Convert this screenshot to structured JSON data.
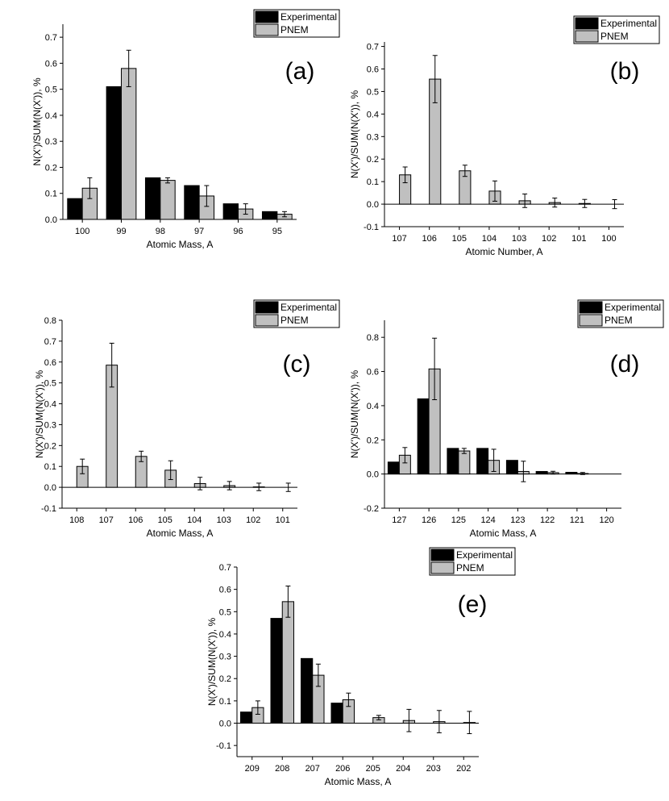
{
  "colors": {
    "experimental": "#000000",
    "pnem": "#c0c0c0",
    "axis": "#000000"
  },
  "chart_data": [
    {
      "id": "a",
      "type": "bar",
      "panel_label": "(a)",
      "xlabel": "Atomic Mass, A",
      "ylabel": "N(X')/SUM(N(X')), %",
      "categories": [
        "100",
        "99",
        "98",
        "97",
        "96",
        "95"
      ],
      "ylim": [
        0,
        0.75
      ],
      "yticks": [
        "0.0",
        "0.1",
        "0.2",
        "0.3",
        "0.4",
        "0.5",
        "0.6",
        "0.7"
      ],
      "legend": [
        "Experimental",
        "PNEM"
      ],
      "series": [
        {
          "name": "Experimental",
          "values": [
            0.08,
            0.51,
            0.16,
            0.13,
            0.06,
            0.03
          ]
        },
        {
          "name": "PNEM",
          "values": [
            0.12,
            0.58,
            0.15,
            0.09,
            0.04,
            0.02
          ],
          "errors": [
            0.04,
            0.07,
            0.01,
            0.04,
            0.02,
            0.01
          ]
        }
      ]
    },
    {
      "id": "b",
      "type": "bar",
      "panel_label": "(b)",
      "xlabel": "Atomic Number, A",
      "ylabel": "N(X')/SUM(N(X')), %",
      "categories": [
        "107",
        "106",
        "105",
        "104",
        "103",
        "102",
        "101",
        "100"
      ],
      "ylim": [
        -0.1,
        0.72
      ],
      "yticks": [
        "-0.1",
        "0.0",
        "0.1",
        "0.2",
        "0.3",
        "0.4",
        "0.5",
        "0.6",
        "0.7"
      ],
      "legend": [
        "Experimental",
        "PNEM"
      ],
      "series": [
        {
          "name": "Experimental",
          "values": [
            0,
            0,
            0,
            0,
            0,
            0,
            0,
            0
          ]
        },
        {
          "name": "PNEM",
          "values": [
            0.13,
            0.555,
            0.148,
            0.058,
            0.015,
            0.007,
            0.003,
            0.0
          ],
          "errors": [
            0.035,
            0.105,
            0.025,
            0.045,
            0.03,
            0.02,
            0.018,
            0.02
          ]
        }
      ]
    },
    {
      "id": "c",
      "type": "bar",
      "panel_label": "(c)",
      "xlabel": "Atomic Mass, A",
      "ylabel": "N(X')/SUM(N(X')), %",
      "categories": [
        "108",
        "107",
        "106",
        "105",
        "104",
        "103",
        "102",
        "101"
      ],
      "ylim": [
        -0.1,
        0.8
      ],
      "yticks": [
        "-0.1",
        "0.0",
        "0.1",
        "0.2",
        "0.3",
        "0.4",
        "0.5",
        "0.6",
        "0.7",
        "0.8"
      ],
      "legend": [
        "Experimental",
        "PNEM"
      ],
      "series": [
        {
          "name": "Experimental",
          "values": [
            0,
            0,
            0,
            0,
            0,
            0,
            0,
            0
          ]
        },
        {
          "name": "PNEM",
          "values": [
            0.1,
            0.585,
            0.148,
            0.082,
            0.018,
            0.008,
            0.002,
            0.0
          ],
          "errors": [
            0.035,
            0.105,
            0.025,
            0.045,
            0.03,
            0.02,
            0.018,
            0.02
          ]
        }
      ]
    },
    {
      "id": "d",
      "type": "bar",
      "panel_label": "(d)",
      "xlabel": "Atomic Mass, A",
      "ylabel": "N(X')/SUM(N(X')), %",
      "categories": [
        "127",
        "126",
        "125",
        "124",
        "123",
        "122",
        "121",
        "120"
      ],
      "ylim": [
        -0.2,
        0.9
      ],
      "yticks": [
        "-0.2",
        "0.0",
        "0.2",
        "0.4",
        "0.6",
        "0.8"
      ],
      "legend": [
        "Experimental",
        "PNEM"
      ],
      "series": [
        {
          "name": "Experimental",
          "values": [
            0.07,
            0.44,
            0.15,
            0.15,
            0.08,
            0.015,
            0.01,
            0.0
          ]
        },
        {
          "name": "PNEM",
          "values": [
            0.11,
            0.615,
            0.135,
            0.08,
            0.015,
            0.008,
            0.003,
            0.0
          ],
          "errors": [
            0.045,
            0.18,
            0.015,
            0.065,
            0.06,
            0.008,
            0.006,
            0.0
          ]
        }
      ]
    },
    {
      "id": "e",
      "type": "bar",
      "panel_label": "(e)",
      "xlabel": "Atomic Mass, A",
      "ylabel": "N(X')/SUM(N(X')), %",
      "categories": [
        "209",
        "208",
        "207",
        "206",
        "205",
        "204",
        "203",
        "202"
      ],
      "ylim": [
        -0.15,
        0.7
      ],
      "yticks": [
        "-0.1",
        "0.0",
        "0.1",
        "0.2",
        "0.3",
        "0.4",
        "0.5",
        "0.6",
        "0.7"
      ],
      "legend": [
        "Experimental",
        "PNEM"
      ],
      "series": [
        {
          "name": "Experimental",
          "values": [
            0.05,
            0.47,
            0.29,
            0.09,
            0.0,
            0.0,
            0.0,
            0.0
          ]
        },
        {
          "name": "PNEM",
          "values": [
            0.07,
            0.545,
            0.215,
            0.105,
            0.025,
            0.012,
            0.007,
            0.003
          ],
          "errors": [
            0.03,
            0.07,
            0.05,
            0.03,
            0.01,
            0.05,
            0.05,
            0.05
          ]
        }
      ]
    }
  ]
}
